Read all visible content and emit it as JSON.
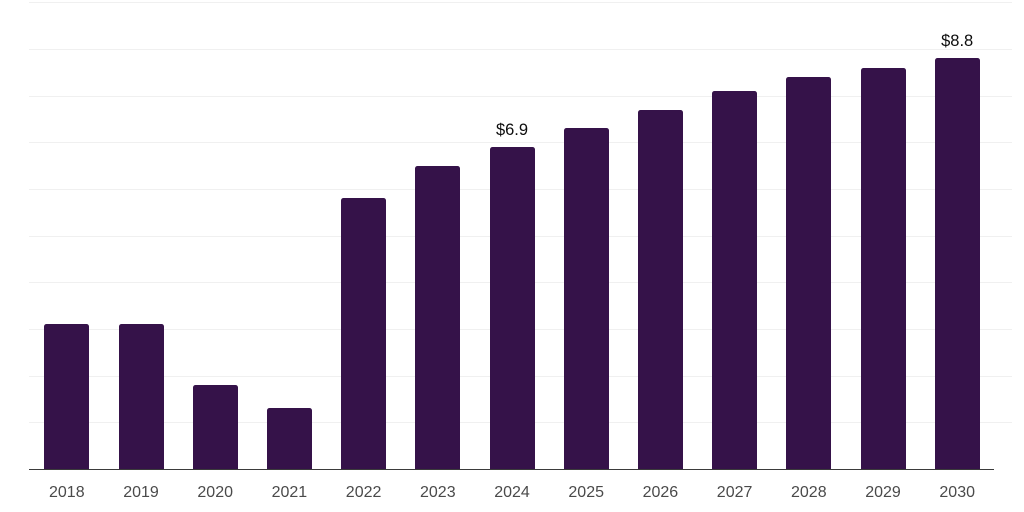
{
  "page": {
    "background_color": "#ffffff"
  },
  "chart_data": {
    "type": "bar",
    "title": "",
    "xlabel": "",
    "ylabel": "",
    "categories": [
      "2018",
      "2019",
      "2020",
      "2021",
      "2022",
      "2023",
      "2024",
      "2025",
      "2026",
      "2027",
      "2028",
      "2029",
      "2030"
    ],
    "values": [
      3.1,
      3.1,
      1.8,
      1.3,
      5.8,
      6.5,
      6.9,
      7.3,
      7.7,
      8.1,
      8.4,
      8.6,
      8.8
    ],
    "bar_labels": [
      "",
      "",
      "",
      "",
      "",
      "",
      "$6.9",
      "",
      "",
      "",
      "",
      "",
      "$8.8"
    ],
    "ylim": [
      0,
      10
    ],
    "grid_step": 1,
    "grid": true,
    "legend": "none",
    "bar_color": "#351249",
    "gridline_color": "#f0f0f0",
    "axis_line_color": "#3b3b3b",
    "tick_label_color": "#4a4a4a",
    "value_label_color": "#0d0d0d"
  }
}
